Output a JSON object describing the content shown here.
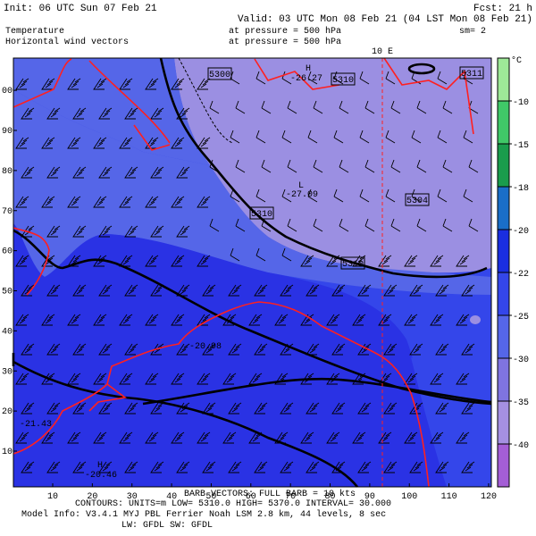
{
  "header": {
    "init": "Init: 06 UTC Sun 07 Feb 21",
    "fcst": "Fcst:   21 h",
    "valid": "Valid: 03 UTC Mon 08 Feb 21 (04 LST Mon 08 Feb 21)",
    "field1": "Temperature",
    "field1_level": "at pressure =  500 hPa",
    "field2": "Horizontal wind vectors",
    "field2_level": "at pressure =  500 hPa",
    "smooth": "sm= 2"
  },
  "map": {
    "meridian_label": "10 E",
    "x_ticks": [
      "10",
      "20",
      "30",
      "40",
      "50",
      "60",
      "70",
      "80",
      "90",
      "100",
      "110",
      "120"
    ],
    "y_ticks": [
      "10",
      "20",
      "30",
      "40",
      "50",
      "60",
      "70",
      "80",
      "90",
      "00"
    ],
    "labels": [
      "5300",
      "H",
      "-26.27",
      "5310",
      "5311",
      "L",
      "-27.09",
      "5304",
      "5310",
      "5310",
      "-20.98",
      "-21.43",
      "H",
      "-20.46"
    ]
  },
  "colorbar": {
    "unit": "°C",
    "ticks": [
      "-10",
      "-15",
      "-18",
      "-20",
      "-22",
      "-25",
      "-30",
      "-35",
      "-40"
    ],
    "colors": [
      "#9ee898",
      "#40c868",
      "#1a9c4c",
      "#1a6ec8",
      "#1a2ee0",
      "#3446ea",
      "#5566e8",
      "#7f74e0",
      "#a590e2",
      "#a45ed6"
    ]
  },
  "footer": {
    "barbs": "BARB VECTORS:  FULL BARB = 10 kts",
    "contours": "CONTOURS:  UNITS=m  LOW=  5310.0      HIGH=  5370.0    INTERVAL=    30.000",
    "model": "Model Info: V3.4.1         MYJ PBL  Ferrier      Noah LSM  2.8 km,  44 levels,  8 sec",
    "radiation": "LW: GFDL SW: GFDL"
  }
}
